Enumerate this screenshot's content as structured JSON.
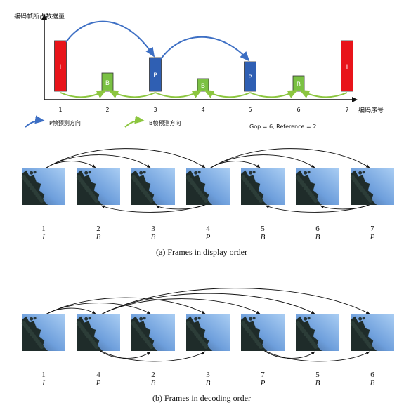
{
  "top_chart": {
    "y_axis_label": "编码帧所占数据量",
    "x_axis_label": "编码序号",
    "frames": [
      {
        "index": "1",
        "type": "I",
        "color": "#e8141a",
        "level": 0.72
      },
      {
        "index": "2",
        "type": "B",
        "color": "#7ac143",
        "level": 0.26
      },
      {
        "index": "3",
        "type": "P",
        "color": "#2f5fb3",
        "level": 0.48
      },
      {
        "index": "4",
        "type": "B",
        "color": "#7ac143",
        "level": 0.18
      },
      {
        "index": "5",
        "type": "P",
        "color": "#2f5fb3",
        "level": 0.42
      },
      {
        "index": "6",
        "type": "B",
        "color": "#7ac143",
        "level": 0.22
      },
      {
        "index": "7",
        "type": "I",
        "color": "#e8141a",
        "level": 0.72
      }
    ],
    "legend": {
      "p_label": "P帧预测方向",
      "b_label": "B帧预测方向",
      "p_color": "#3d6fc4",
      "b_color": "#8cc63f"
    },
    "note": "Gop = 6, Reference = 2"
  },
  "display_order": {
    "caption": "(a) Frames in display order",
    "frames": [
      {
        "number": "1",
        "type": "I"
      },
      {
        "number": "2",
        "type": "B"
      },
      {
        "number": "3",
        "type": "B"
      },
      {
        "number": "4",
        "type": "P"
      },
      {
        "number": "5",
        "type": "B"
      },
      {
        "number": "6",
        "type": "B"
      },
      {
        "number": "7",
        "type": "P"
      }
    ]
  },
  "decoding_order": {
    "caption": "(b) Frames in decoding order",
    "frames": [
      {
        "number": "1",
        "type": "I"
      },
      {
        "number": "4",
        "type": "P"
      },
      {
        "number": "2",
        "type": "B"
      },
      {
        "number": "3",
        "type": "B"
      },
      {
        "number": "7",
        "type": "P"
      },
      {
        "number": "5",
        "type": "B"
      },
      {
        "number": "6",
        "type": "B"
      }
    ]
  }
}
